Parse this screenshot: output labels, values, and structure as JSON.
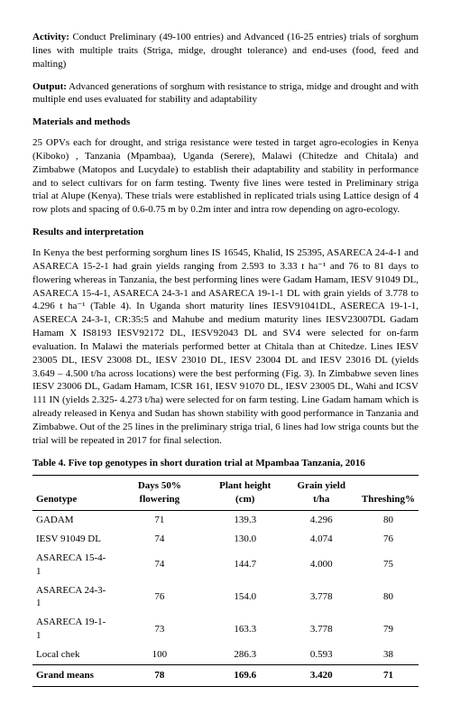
{
  "activity": {
    "label": "Activity:",
    "text": "Conduct Preliminary (49-100 entries) and Advanced (16-25 entries) trials of sorghum lines with multiple traits (Striga, midge, drought tolerance) and end-uses (food, feed and malting)"
  },
  "output": {
    "label": "Output:",
    "text": "Advanced generations of sorghum with resistance to striga, midge and drought and with multiple end uses evaluated for stability and adaptability"
  },
  "sections": {
    "materials_title": "Materials and methods",
    "materials_text": "25 OPVs each for drought, and striga resistance were tested in target agro-ecologies in Kenya (Kiboko) , Tanzania (Mpambaa), Uganda (Serere),  Malawi (Chitedze and Chitala) and Zimbabwe (Matopos and Lucydale) to establish their adaptability and stability in performance and to select cultivars for on farm testing. Twenty five lines were tested in Preliminary striga trial at Alupe (Kenya). These trials were established in replicated trials using Lattice design of 4 row plots and spacing of 0.6-0.75 m by 0.2m inter and intra row depending on agro-ecology.",
    "results_title": "Results and interpretation",
    "results_text": "In Kenya the best performing sorghum lines IS 16545, Khalid, IS 25395, ASARECA 24-4-1 and ASARECA 15-2-1 had grain yields ranging from 2.593 to 3.33 t ha⁻¹ and 76 to 81 days to flowering whereas in Tanzania, the best performing lines were Gadam Hamam, IESV 91049 DL, ASARECA 15-4-1, ASARECA 24-3-1 and ASARECA 19-1-1 DL with grain yields of 3.778 to 4.296 t ha⁻¹ (Table 4). In Uganda short maturity lines IESV91041DL, ASERECA 19-1-1, ASERECA 24-3-1, CR:35:5 and Mahube and medium maturity lines IESV23007DL Gadam Hamam X IS8193 IESV92172 DL, IESV92043 DL and SV4 were selected for on-farm evaluation. In Malawi the materials performed better at Chitala than at Chitedze. Lines IESV 23005 DL, IESV 23008 DL, IESV 23010 DL, IESV 23004 DL and IESV 23016 DL (yields 3.649 – 4.500 t/ha across locations) were the best performing (Fig. 3). In Zimbabwe seven lines IESV 23006 DL, Gadam Hamam, ICSR 161, IESV 91070 DL, IESV 23005 DL, Wahi and ICSV 111 IN (yields 2.325- 4.273 t/ha) were selected for on farm testing. Line Gadam hamam which is already released in Kenya and Sudan has shown stability with good performance in Tanzania and Zimbabwe. Out of the 25 lines in the preliminary striga trial, 6 lines had low striga counts but the trial will be repeated in 2017 for final selection."
  },
  "table": {
    "caption": "Table 4. Five top genotypes in short duration trial at Mpambaa Tanzania, 2016",
    "columns": {
      "genotype": "Genotype",
      "days": "Days 50% flowering",
      "height": "Plant height (cm)",
      "yield": "Grain yield t/ha",
      "thresh": "Threshing%"
    },
    "rows": [
      {
        "genotype": "GADAM",
        "days": "71",
        "height": "139.3",
        "yield": "4.296",
        "thresh": "80"
      },
      {
        "genotype": "IESV 91049 DL",
        "days": "74",
        "height": "130.0",
        "yield": "4.074",
        "thresh": "76"
      },
      {
        "genotype": "ASARECA 15-4-1",
        "days": "74",
        "height": "144.7",
        "yield": "4.000",
        "thresh": "75"
      },
      {
        "genotype": "ASARECA 24-3-1",
        "days": "76",
        "height": "154.0",
        "yield": "3.778",
        "thresh": "80"
      },
      {
        "genotype": "ASARECA 19-1-1",
        "days": "73",
        "height": "163.3",
        "yield": "3.778",
        "thresh": "79"
      },
      {
        "genotype": "Local chek",
        "days": "100",
        "height": "286.3",
        "yield": "0.593",
        "thresh": "38"
      }
    ],
    "footer": {
      "genotype": "Grand means",
      "days": "78",
      "height": "169.6",
      "yield": "3.420",
      "thresh": "71"
    }
  }
}
